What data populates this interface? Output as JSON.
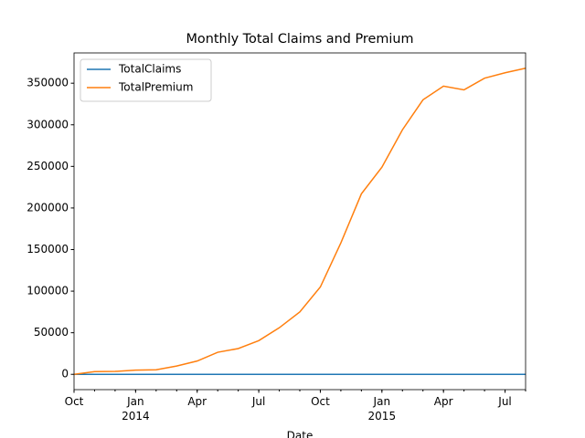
{
  "chart_data": {
    "type": "line",
    "title": "Monthly Total Claims and Premium",
    "x_label": "Date",
    "x": [
      "2013-10",
      "2013-11",
      "2013-12",
      "2014-01",
      "2014-02",
      "2014-03",
      "2014-04",
      "2014-05",
      "2014-06",
      "2014-07",
      "2014-08",
      "2014-09",
      "2014-10",
      "2014-11",
      "2014-12",
      "2015-01",
      "2015-02",
      "2015-03",
      "2015-04",
      "2015-05",
      "2015-06",
      "2015-07",
      "2015-08"
    ],
    "series": [
      {
        "name": "TotalClaims",
        "color": "#1f77b4",
        "values": [
          0,
          0,
          0,
          0,
          0,
          0,
          0,
          0,
          0,
          0,
          0,
          0,
          0,
          0,
          0,
          0,
          0,
          0,
          0,
          0,
          0,
          0,
          0
        ]
      },
      {
        "name": "TotalPremium",
        "color": "#ff7f0e",
        "values": [
          0,
          3300,
          3500,
          5000,
          5500,
          10000,
          16000,
          26500,
          31000,
          40500,
          56000,
          75000,
          105000,
          158000,
          217000,
          249000,
          294000,
          330000,
          346500,
          342000,
          356000,
          362500,
          368000
        ]
      }
    ],
    "xlim": [
      "2013-10",
      "2015-08"
    ],
    "xticks": [
      {
        "value": "2013-10",
        "label": "Oct"
      },
      {
        "value": "2014-01",
        "label": "Jan\n2014"
      },
      {
        "value": "2014-04",
        "label": "Apr"
      },
      {
        "value": "2014-07",
        "label": "Jul"
      },
      {
        "value": "2014-10",
        "label": "Oct"
      },
      {
        "value": "2015-01",
        "label": "Jan\n2015"
      },
      {
        "value": "2015-04",
        "label": "Apr"
      },
      {
        "value": "2015-07",
        "label": "Jul"
      }
    ],
    "ylim": [
      -18400,
      386400
    ],
    "yticks": [
      0,
      50000,
      100000,
      150000,
      200000,
      250000,
      300000,
      350000
    ],
    "legend": "upper left"
  }
}
